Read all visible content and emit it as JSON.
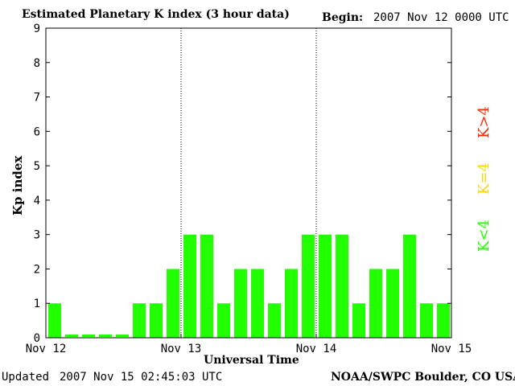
{
  "header": {
    "title": "Estimated Planetary K index (3 hour data)",
    "begin_label": "Begin:",
    "begin_value": "2007 Nov 12 0000 UTC"
  },
  "footer": {
    "updated_label": "Updated",
    "updated_value": "2007 Nov 15 02:45:03 UTC",
    "credit": "NOAA/SWPC Boulder, CO USA"
  },
  "legend": {
    "high": "K>4",
    "equal": "K=4",
    "low": "K<4"
  },
  "colors": {
    "low": "#22ff00",
    "equal": "#ffd700",
    "high": "#ff2a00"
  },
  "chart_data": {
    "type": "bar",
    "title": "Estimated Planetary K index (3 hour data)",
    "xlabel": "Universal Time",
    "ylabel": "Kp index",
    "ylim": [
      0,
      9
    ],
    "yticks": [
      "0",
      "1",
      "2",
      "3",
      "4",
      "5",
      "6",
      "7",
      "8",
      "9"
    ],
    "xticks": [
      "Nov 12",
      "Nov 13",
      "Nov 14",
      "Nov 15"
    ],
    "bin_hours": 3,
    "values": [
      1,
      0,
      0,
      0,
      0,
      1,
      1,
      2,
      3,
      3,
      1,
      2,
      2,
      1,
      2,
      3,
      3,
      3,
      1,
      2,
      2,
      3,
      1,
      1
    ]
  }
}
